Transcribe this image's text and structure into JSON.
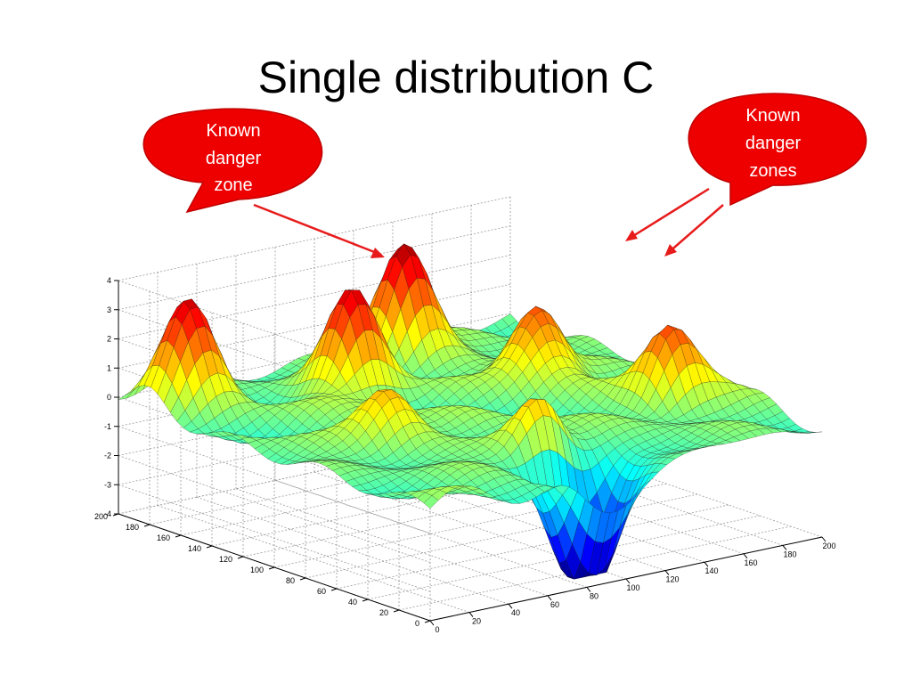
{
  "slide": {
    "title": "Single distribution C"
  },
  "callouts": [
    {
      "lines": [
        "Known",
        "danger",
        "zone"
      ]
    },
    {
      "lines": [
        "Known",
        "danger",
        "zones"
      ]
    }
  ],
  "colors": {
    "callout_fill": "#ee0000",
    "arrow": "#e81b1b",
    "grid": "#9a9a9a"
  },
  "chart_data": {
    "type": "surface",
    "title": "",
    "colormap": "jet",
    "zlim": [
      -4,
      4
    ],
    "z_ticks": [
      -4,
      -3,
      -2,
      -1,
      0,
      1,
      2,
      3,
      4
    ],
    "x_ticks": [
      0,
      20,
      40,
      60,
      80,
      100,
      120,
      140,
      160,
      180,
      200
    ],
    "y_ticks": [
      0,
      20,
      40,
      60,
      80,
      100,
      120,
      140,
      160,
      180,
      200
    ],
    "xlim": [
      0,
      200
    ],
    "ylim": [
      0,
      200
    ],
    "grid": true,
    "peaks": [
      {
        "x": 20,
        "y": 180,
        "z": 3.4
      },
      {
        "x": 80,
        "y": 150,
        "z": 3.6
      },
      {
        "x": 130,
        "y": 180,
        "z": 4.1
      },
      {
        "x": 150,
        "y": 120,
        "z": 3.0
      },
      {
        "x": 90,
        "y": 40,
        "z": 2.3
      },
      {
        "x": 170,
        "y": 60,
        "z": 2.6
      },
      {
        "x": 50,
        "y": 90,
        "z": 2.0
      }
    ],
    "troughs": [
      {
        "x": 100,
        "y": 20,
        "z": -3.6
      },
      {
        "x": 85,
        "y": 15,
        "z": -3.2
      }
    ]
  }
}
